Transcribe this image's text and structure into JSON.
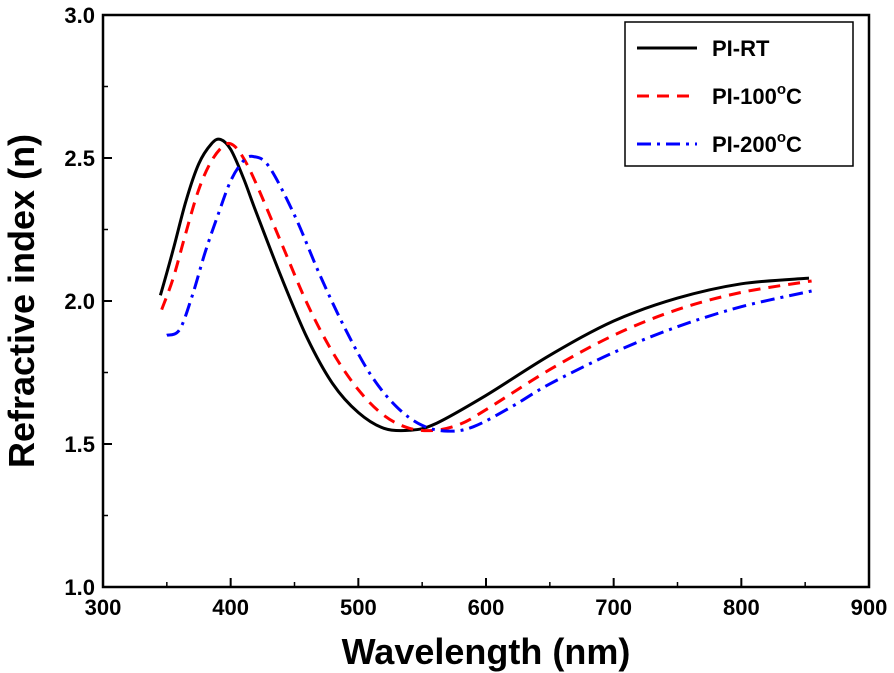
{
  "chart_data": {
    "type": "line",
    "title": "",
    "xlabel": "Wavelength (nm)",
    "ylabel": "Refractive index (n)",
    "xlim": [
      300,
      900
    ],
    "ylim": [
      1.0,
      3.0
    ],
    "xticks": [
      "300",
      "400",
      "500",
      "600",
      "700",
      "800",
      "900"
    ],
    "yticks": [
      "1.0",
      "1.5",
      "2.0",
      "2.5",
      "3.0"
    ],
    "legend_position": "top-right",
    "series": [
      {
        "name": "PI-RT",
        "label_main": "PI-RT",
        "label_sup": "",
        "label_tail": "",
        "color": "#000000",
        "dash": "solid",
        "x": [
          345,
          355,
          365,
          375,
          385,
          392,
          400,
          410,
          420,
          440,
          460,
          480,
          500,
          520,
          540,
          560,
          600,
          650,
          700,
          750,
          800,
          853
        ],
        "y": [
          2.02,
          2.18,
          2.35,
          2.48,
          2.55,
          2.565,
          2.53,
          2.43,
          2.31,
          2.08,
          1.87,
          1.71,
          1.61,
          1.555,
          1.548,
          1.57,
          1.67,
          1.81,
          1.93,
          2.01,
          2.06,
          2.08
        ]
      },
      {
        "name": "PI-100oC",
        "label_main": "PI-100",
        "label_sup": "o",
        "label_tail": "C",
        "color": "#ff0000",
        "dash": "dash",
        "x": [
          346,
          355,
          365,
          375,
          385,
          395,
          402,
          410,
          420,
          440,
          460,
          480,
          500,
          520,
          540,
          560,
          580,
          600,
          650,
          700,
          750,
          800,
          855
        ],
        "y": [
          1.97,
          2.08,
          2.24,
          2.39,
          2.49,
          2.545,
          2.545,
          2.5,
          2.41,
          2.2,
          1.99,
          1.82,
          1.69,
          1.6,
          1.555,
          1.548,
          1.57,
          1.62,
          1.76,
          1.88,
          1.97,
          2.03,
          2.07
        ]
      },
      {
        "name": "PI-200oC",
        "label_main": "PI-200",
        "label_sup": "o",
        "label_tail": "C",
        "color": "#0000ff",
        "dash": "dashdot",
        "x": [
          350,
          360,
          370,
          380,
          390,
          400,
          410,
          418,
          430,
          450,
          470,
          490,
          510,
          530,
          550,
          570,
          590,
          620,
          650,
          700,
          750,
          800,
          855
        ],
        "y": [
          1.88,
          1.9,
          2.02,
          2.17,
          2.3,
          2.42,
          2.49,
          2.505,
          2.47,
          2.3,
          2.09,
          1.9,
          1.74,
          1.63,
          1.565,
          1.545,
          1.56,
          1.63,
          1.71,
          1.82,
          1.91,
          1.98,
          2.035
        ]
      }
    ]
  }
}
